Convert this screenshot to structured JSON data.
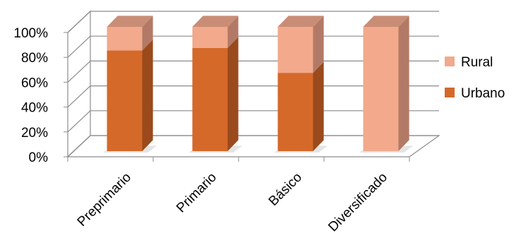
{
  "chart_data": {
    "type": "bar",
    "stacked": true,
    "percent": true,
    "three_d": true,
    "categories": [
      "Preprimario",
      "Primario",
      "Básico",
      "Diversificado"
    ],
    "series": [
      {
        "name": "Urbano",
        "values": [
          81,
          83,
          63,
          0
        ],
        "color": "#D4692A",
        "side_color": "#9A4A1C",
        "top_color": "#E07A3C"
      },
      {
        "name": "Rural",
        "values": [
          19,
          17,
          37,
          100
        ],
        "color": "#F2A98C",
        "side_color": "#B27A66",
        "top_color": "#C98D76"
      }
    ],
    "y_ticks": [
      "0%",
      "20%",
      "40%",
      "60%",
      "80%",
      "100%"
    ],
    "ylim": [
      0,
      100
    ],
    "grid": true,
    "legend_position": "right",
    "legend_order": [
      "Rural",
      "Urbano"
    ]
  }
}
